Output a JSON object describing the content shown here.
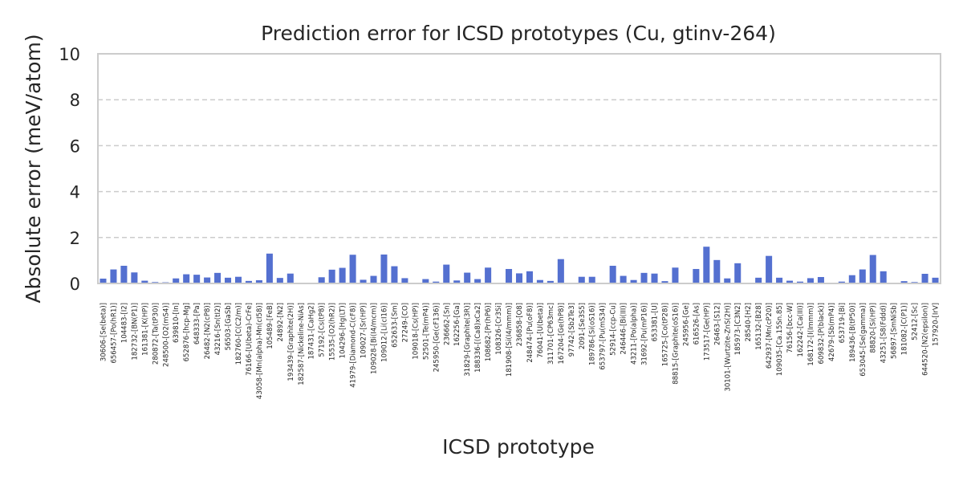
{
  "chart_data": {
    "type": "bar",
    "title": "Prediction error for ICSD prototypes (Cu, gtinv-264)",
    "xlabel": "ICSD prototype",
    "ylabel": "Absolute error (meV/atom)",
    "ylim": [
      0,
      10
    ],
    "yticks": [
      0,
      2,
      4,
      6,
      8,
      10
    ],
    "grid": "horizontal dashed",
    "bar_color": "#5470d0",
    "categories": [
      "30606-[Se(beta)]",
      "656457-[Po(hR1)]",
      "104483-[I2]",
      "182732-[BN(P1)]",
      "161381-[K(HP)]",
      "280872-[Ta(tP30)]",
      "248500-[O2(mS4)]",
      "639810-[In]",
      "652876-[hcp-Mg]",
      "648333-[Pa]",
      "26482-[N2(cP8)]",
      "43216-[Sn(tI2)]",
      "56503-[GaSb]",
      "182760-[C(C2/m)]",
      "76166-[U(beta)-CrFe]",
      "43058-[Mn(alpha)-Mn(cI58)]",
      "105489-[FeB]",
      "24892-[N2]",
      "193439-[Graphite(2H)]",
      "182587-[Nickeline-NiAs]",
      "187431-[CaHg2]",
      "57192-[Cs(tP8)]",
      "15535-[O2(hR2)]",
      "104296-[Hg(LT)]",
      "41979-[Diamond-C(cF8)]",
      "109027-[Sr(HP)]",
      "109028-[Bi(I4/mcm)]",
      "109012-[Li(cI16)]",
      "652633-[Sm]",
      "27249-[CO]",
      "109018-[Cs(HP)]",
      "52501-[Te(mP4)]",
      "245950-[Ge(cF136)]",
      "236662-[Sn]",
      "162256-[Ga]",
      "31829-[Graphite(3R)]",
      "188336-[(Ca8)xCa2]",
      "108682-[Pr(hP6)]",
      "108326-[Cr3Si]",
      "181908-[Si(I4/mmm)]",
      "236858-[O8]",
      "248474-[Pu(oF8)]",
      "76041-[U(beta)]",
      "311701-[CP63mc]",
      "167204-[Ge(hP8)]",
      "97742-[Sb2Te3]",
      "2091-[Se3S5]",
      "189786-[Si(oS16)]",
      "653797-[Pu(mS34)]",
      "52914-[ccp-Cu]",
      "246446-[Bi(III)]",
      "43211-[Po(alpha)]",
      "31692-[Pu(mP16)]",
      "653381-[U]",
      "165725-[Co(tP28)]",
      "88815-[Graphite(oS16)]",
      "245956-[Ge]",
      "616526-[As]",
      "173517-[Ge(HP)]",
      "26463-[S12]",
      "30101-[Wurtzite-ZnS(2H)]",
      "185973-[C3N2]",
      "28540-[H2]",
      "165132-[B28]",
      "642937-[Mn(cP20)]",
      "109035-[Ca.15Sn.85]",
      "76156-[bcc-W]",
      "162242-[Ca(III)]",
      "168172-[I(Immm)]",
      "609832-[P(black)]",
      "42679-[Sb(mP4)]",
      "653719-[Bi]",
      "189436-[B(tP50)]",
      "653045-[Se(gamma)]",
      "88820-[Si(HP)]",
      "43251-[S8(Fddd)]",
      "56897-[SmNiSb]",
      "181082-[C(P1)]",
      "52412-[Sc]",
      "644520-[N2(epsilon)]",
      "157920-[IrV]"
    ],
    "values": [
      0.21,
      0.61,
      0.77,
      0.48,
      0.12,
      0.06,
      0.05,
      0.22,
      0.4,
      0.38,
      0.26,
      0.46,
      0.25,
      0.29,
      0.11,
      0.14,
      1.3,
      0.24,
      0.43,
      0.0,
      0.0,
      0.27,
      0.6,
      0.68,
      1.25,
      0.16,
      0.33,
      1.26,
      0.75,
      0.23,
      0.0,
      0.19,
      0.08,
      0.82,
      0.13,
      0.47,
      0.19,
      0.69,
      0.0,
      0.63,
      0.44,
      0.53,
      0.15,
      0.11,
      1.06,
      0.0,
      0.29,
      0.29,
      0.0,
      0.77,
      0.33,
      0.15,
      0.46,
      0.43,
      0.1,
      0.69,
      0.0,
      0.63,
      1.6,
      1.02,
      0.22,
      0.88,
      0.0,
      0.25,
      1.2,
      0.25,
      0.12,
      0.08,
      0.23,
      0.28,
      0.0,
      0.08,
      0.36,
      0.61,
      1.24,
      0.53,
      0.0,
      0.1,
      0.06,
      0.42,
      0.25
    ]
  }
}
